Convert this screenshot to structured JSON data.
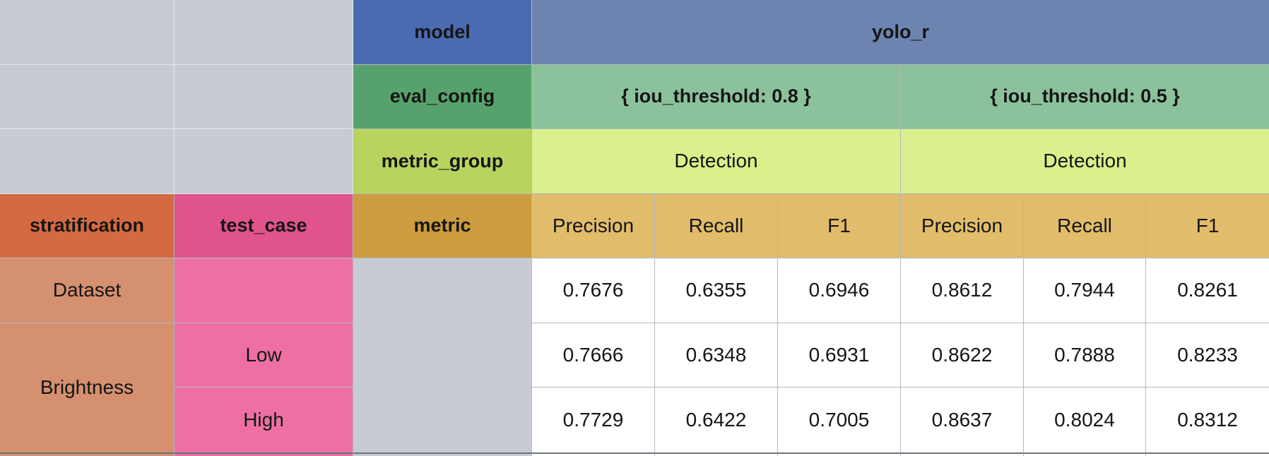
{
  "palette": {
    "bg_gray": "#c7cbd4",
    "model_label_bg": "#4a6bb1",
    "model_value_bg": "#6d84b0",
    "eval_label_bg": "#57a26c",
    "eval_value_bg": "#8bc29c",
    "group_label_bg": "#b8d45f",
    "group_value_bg": "#daf08c",
    "metric_label_bg": "#cd9c3e",
    "metric_value_bg": "#e1bc6b",
    "strat_header_bg": "#d56a42",
    "strat_cell_bg": "#d5906f",
    "case_header_bg": "#e0548b",
    "case_cell_bg": "#ee70a3",
    "grid_line": "#b3b7bf",
    "text_color": "#151515"
  },
  "table": {
    "model": {
      "label": "model",
      "value": "yolo_r"
    },
    "eval_config": {
      "label": "eval_config",
      "values": [
        "{ iou_threshold: 0.8 }",
        "{ iou_threshold: 0.5 }"
      ]
    },
    "metric_group": {
      "label": "metric_group",
      "values": [
        "Detection",
        "Detection"
      ]
    },
    "metric": {
      "label": "metric",
      "columns": [
        "Precision",
        "Recall",
        "F1",
        "Precision",
        "Recall",
        "F1"
      ]
    },
    "corner": {
      "stratification": "stratification",
      "test_case": "test_case"
    },
    "rows": [
      {
        "stratification": "Dataset",
        "test_case": "",
        "values": [
          "0.7676",
          "0.6355",
          "0.6946",
          "0.8612",
          "0.7944",
          "0.8261"
        ]
      },
      {
        "stratification": "Brightness",
        "test_case": "Low",
        "values": [
          "0.7666",
          "0.6348",
          "0.6931",
          "0.8622",
          "0.7888",
          "0.8233"
        ]
      },
      {
        "stratification": "",
        "test_case": "High",
        "values": [
          "0.7729",
          "0.6422",
          "0.7005",
          "0.8637",
          "0.8024",
          "0.8312"
        ]
      }
    ]
  }
}
